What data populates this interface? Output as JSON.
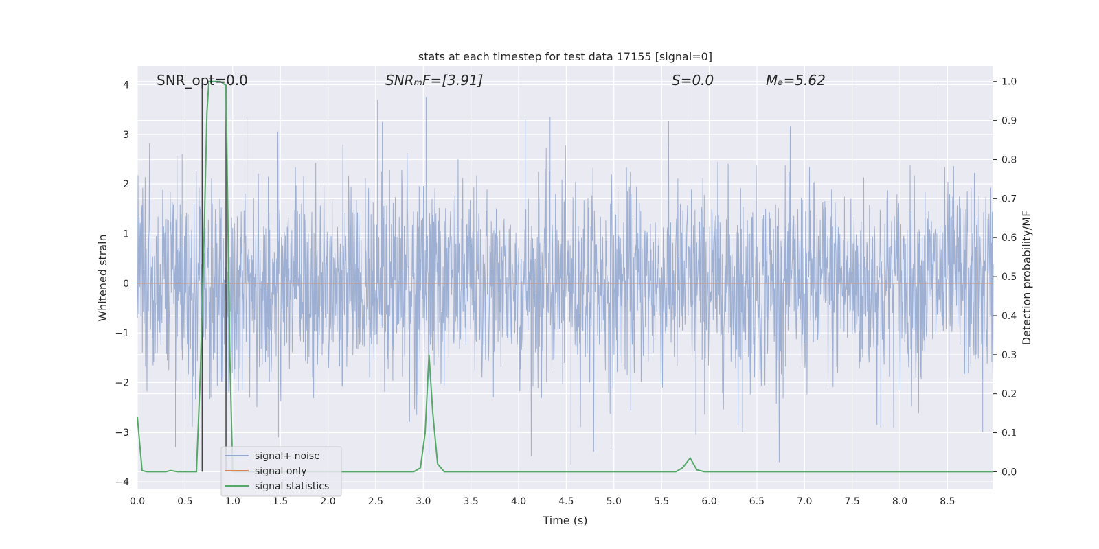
{
  "chart_data": {
    "type": "line",
    "title": "stats at each timestep for test data 17155 [signal=0]",
    "xlabel": "Time (s)",
    "ylabel_left": "Whitened strain",
    "ylabel_right": "Detection probability/MF",
    "xlim": [
      0.0,
      8.98
    ],
    "ylim_left": [
      -4.15,
      4.38
    ],
    "ylim_right": [
      -0.045,
      1.04
    ],
    "x_ticks": [
      "0.0",
      "0.5",
      "1.0",
      "1.5",
      "2.0",
      "2.5",
      "3.0",
      "3.5",
      "4.0",
      "4.5",
      "5.0",
      "5.5",
      "6.0",
      "6.5",
      "7.0",
      "7.5",
      "8.0",
      "8.5"
    ],
    "y_left_ticks": [
      "4",
      "3",
      "2",
      "1",
      "0",
      "−1",
      "−2",
      "−3",
      "−4"
    ],
    "y_right_ticks": [
      "1.0",
      "0.9",
      "0.8",
      "0.7",
      "0.6",
      "0.5",
      "0.4",
      "0.3",
      "0.2",
      "0.1",
      "0.0"
    ],
    "grid": true,
    "annotations": [
      {
        "name": "snr-opt",
        "text": "SNR_opt=0.0",
        "italic": false
      },
      {
        "name": "snr-mf",
        "text": "SNRₘF=[3.91]",
        "italic": true
      },
      {
        "name": "s-value",
        "text": "S=0.0",
        "italic": true
      },
      {
        "name": "mc-value",
        "text": "Mₔ=5.62",
        "italic": true
      }
    ],
    "legend_position": "bottom-left",
    "series": [
      {
        "name": "signal+ noise",
        "color": "#95a8cf",
        "axis": "left",
        "kind": "noise",
        "amplitude_sigma": 1.0,
        "spikes": [
          [
            0.4,
            -3.3
          ],
          [
            0.47,
            2.6
          ],
          [
            1.15,
            3.35
          ],
          [
            1.48,
            -3.1
          ],
          [
            2.52,
            3.7
          ],
          [
            2.57,
            3.25
          ],
          [
            3.03,
            3.75
          ],
          [
            3.06,
            -3.45
          ],
          [
            4.07,
            3.3
          ],
          [
            4.33,
            3.35
          ],
          [
            4.55,
            -3.65
          ],
          [
            4.97,
            -3.35
          ],
          [
            5.57,
            2.8
          ],
          [
            5.82,
            3.95
          ],
          [
            5.86,
            -3.05
          ],
          [
            6.35,
            -3.0
          ],
          [
            7.8,
            -2.9
          ],
          [
            8.4,
            4.0
          ],
          [
            8.87,
            -3.0
          ]
        ]
      },
      {
        "name": "signal only",
        "color": "#dd8452",
        "axis": "left",
        "kind": "flat",
        "value": 0.0
      },
      {
        "name": "signal statistics",
        "color": "#55a868",
        "axis": "right",
        "kind": "line",
        "x": [
          0.0,
          0.05,
          0.1,
          0.2,
          0.3,
          0.35,
          0.42,
          0.5,
          0.55,
          0.62,
          0.66,
          0.7,
          0.73,
          0.75,
          0.8,
          0.87,
          0.93,
          0.97,
          1.0,
          1.05,
          1.1,
          2.9,
          2.97,
          3.02,
          3.06,
          3.1,
          3.15,
          3.22,
          3.3,
          5.5,
          5.65,
          5.72,
          5.8,
          5.87,
          5.95,
          6.05,
          8.98
        ],
        "y": [
          0.14,
          0.003,
          0.0,
          0.0,
          0.0,
          0.003,
          0.0,
          0.0,
          0.0,
          0.0,
          0.25,
          0.6,
          0.92,
          1.0,
          1.0,
          1.0,
          0.99,
          0.3,
          0.0,
          0.0,
          0.0,
          0.0,
          0.01,
          0.1,
          0.3,
          0.15,
          0.02,
          0.0,
          0.0,
          0.0,
          0.0,
          0.01,
          0.035,
          0.005,
          0.0,
          0.0,
          0.0
        ]
      }
    ],
    "vertical_markers": [
      {
        "name": "window-start-marker",
        "x": 0.68,
        "color": "#444444"
      },
      {
        "name": "window-end-marker",
        "x": 0.93,
        "color": "#444444"
      }
    ]
  }
}
